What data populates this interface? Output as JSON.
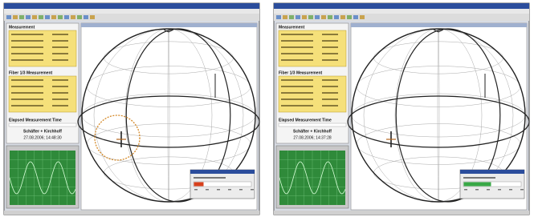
{
  "windows": [
    {
      "sections": [
        "Measurement",
        "Fiber 1/3 Measurement"
      ],
      "elapsed": "Elapsed Measurement Time",
      "company": "Schäfter + Kirchhoff",
      "timestamp": "27.08.2006; 14:48:30"
    },
    {
      "sections": [
        "Measurement",
        "Fiber 1/3 Measurement"
      ],
      "elapsed": "Elapsed Measurement Time",
      "company": "Schäfter + Kirchhoff",
      "timestamp": "27.08.2006; 14:37:28"
    }
  ]
}
